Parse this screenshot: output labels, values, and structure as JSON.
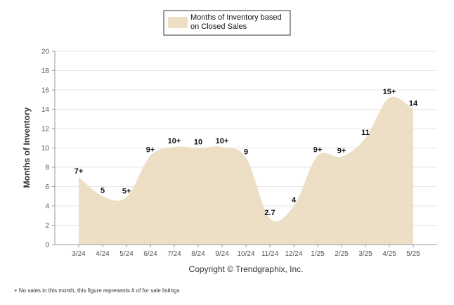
{
  "chart_data": {
    "type": "area",
    "categories": [
      "3/24",
      "4/24",
      "5/24",
      "6/24",
      "7/24",
      "8/24",
      "9/24",
      "10/24",
      "11/24",
      "12/24",
      "1/25",
      "2/25",
      "3/25",
      "4/25",
      "5/25"
    ],
    "series": [
      {
        "name": "Months of Inventory based on Closed Sales",
        "values": [
          7,
          5,
          4.9,
          9.2,
          10.1,
          10,
          10.1,
          9,
          2.7,
          4,
          9.2,
          9.1,
          11,
          15.2,
          14
        ],
        "labels": [
          "7+",
          "5",
          "5+",
          "9+",
          "10+",
          "10",
          "10+",
          "9",
          "2.7",
          "4",
          "9+",
          "9+",
          "11",
          "15+",
          "14"
        ]
      }
    ],
    "ylabel": "Months of Inventory",
    "xlabel": "",
    "ylim": [
      0,
      20
    ],
    "yticks": [
      "0",
      "2",
      "4",
      "6",
      "8",
      "10",
      "12",
      "14",
      "16",
      "18",
      "20"
    ],
    "grid": true,
    "legend": "top-center",
    "fill_color": "#ecdfc5",
    "copyright": "Copyright © Trendgraphix, Inc.",
    "footnote": "+ No sales in this month, this figure represents # of for sale listings"
  }
}
